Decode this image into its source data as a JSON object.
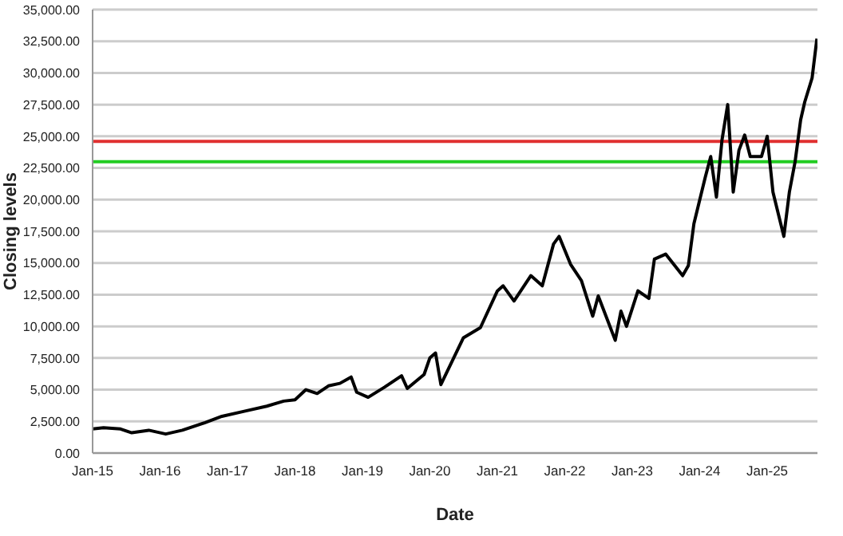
{
  "chart_data": {
    "type": "line",
    "xlabel": "Date",
    "ylabel": "Closing levels",
    "x": [
      "2015-01",
      "2015-03",
      "2015-06",
      "2015-08",
      "2015-11",
      "2016-02",
      "2016-05",
      "2016-09",
      "2016-12",
      "2017-04",
      "2017-08",
      "2017-11",
      "2018-01",
      "2018-03",
      "2018-05",
      "2018-07",
      "2018-09",
      "2018-11",
      "2018-12",
      "2019-02",
      "2019-05",
      "2019-08",
      "2019-09",
      "2019-12",
      "2020-01",
      "2020-02",
      "2020-03",
      "2020-07",
      "2020-10",
      "2021-01",
      "2021-02",
      "2021-04",
      "2021-07",
      "2021-09",
      "2021-11",
      "2021-12",
      "2022-02",
      "2022-04",
      "2022-06",
      "2022-07",
      "2022-10",
      "2022-11",
      "2022-12",
      "2023-02",
      "2023-04",
      "2023-05",
      "2023-07",
      "2023-10",
      "2023-11",
      "2023-12",
      "2024-02",
      "2024-03",
      "2024-04",
      "2024-05",
      "2024-06",
      "2024-07",
      "2024-08",
      "2024-09",
      "2024-10",
      "2024-12",
      "2025-01",
      "2025-02",
      "2025-04",
      "2025-05",
      "2025-06",
      "2025-07",
      "2025-07-23",
      "2025-09-01",
      "2025-09-27"
    ],
    "series": [
      {
        "color": "#000000",
        "values": [
          1900,
          2000,
          1900,
          1600,
          1800,
          1500,
          1800,
          2400,
          2900,
          3300,
          3700,
          4100,
          4200,
          5000,
          4700,
          5300,
          5500,
          6000,
          4800,
          4400,
          5200,
          6100,
          5100,
          6200,
          7500,
          7900,
          5400,
          9100,
          9900,
          12800,
          13200,
          12000,
          14000,
          13200,
          16500,
          17100,
          14900,
          13600,
          10800,
          12400,
          8900,
          11200,
          10000,
          12800,
          12200,
          15300,
          15700,
          14000,
          14800,
          18100,
          21800,
          23400,
          20200,
          24700,
          27500,
          20600,
          23900,
          25100,
          23400,
          23400,
          25000,
          20600,
          17100,
          20600,
          23000,
          26300,
          27700,
          29600,
          32700
        ]
      }
    ],
    "xlim": [
      "2015-01",
      "2025-09-30"
    ],
    "xticks": [
      {
        "value": "2015-01",
        "label": "Jan-15"
      },
      {
        "value": "2016-01",
        "label": "Jan-16"
      },
      {
        "value": "2017-01",
        "label": "Jan-17"
      },
      {
        "value": "2018-01",
        "label": "Jan-18"
      },
      {
        "value": "2019-01",
        "label": "Jan-19"
      },
      {
        "value": "2020-01",
        "label": "Jan-20"
      },
      {
        "value": "2021-01",
        "label": "Jan-21"
      },
      {
        "value": "2022-01",
        "label": "Jan-22"
      },
      {
        "value": "2023-01",
        "label": "Jan-23"
      },
      {
        "value": "2024-01",
        "label": "Jan-24"
      },
      {
        "value": "2025-01",
        "label": "Jan-25"
      }
    ],
    "ylim": [
      0,
      35000
    ],
    "yticks": [
      {
        "value": 0,
        "label": "0.00"
      },
      {
        "value": 2500,
        "label": "2,500.00"
      },
      {
        "value": 5000,
        "label": "5,000.00"
      },
      {
        "value": 7500,
        "label": "7,500.00"
      },
      {
        "value": 10000,
        "label": "10,000.00"
      },
      {
        "value": 12500,
        "label": "12,500.00"
      },
      {
        "value": 15000,
        "label": "15,000.00"
      },
      {
        "value": 17500,
        "label": "17,500.00"
      },
      {
        "value": 20000,
        "label": "20,000.00"
      },
      {
        "value": 22500,
        "label": "22,500.00"
      },
      {
        "value": 25000,
        "label": "25,000.00"
      },
      {
        "value": 27500,
        "label": "27,500.00"
      },
      {
        "value": 30000,
        "label": "30,000.00"
      },
      {
        "value": 32500,
        "label": "32,500.00"
      },
      {
        "value": 35000,
        "label": "35,000.00"
      }
    ],
    "ref_lines": [
      {
        "axis": "y",
        "value": 24600,
        "color": "#e03030"
      },
      {
        "axis": "y",
        "value": 23000,
        "color": "#22cc22"
      }
    ],
    "grid": "y",
    "legend": false,
    "marker": "none",
    "line_style": "solid"
  }
}
